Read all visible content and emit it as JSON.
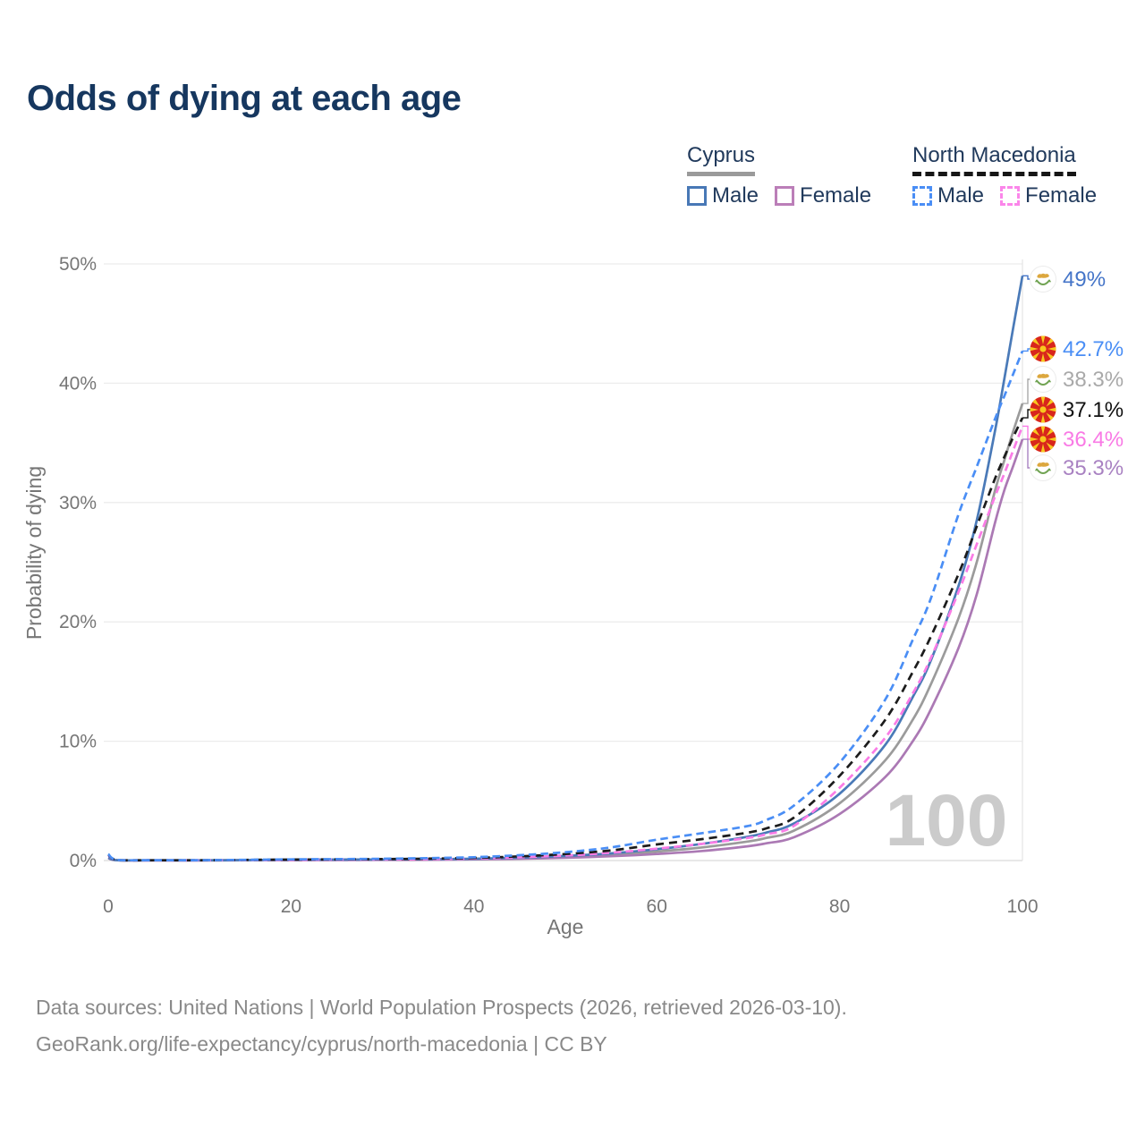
{
  "title": "Odds of dying at each age",
  "watermark": "100",
  "legend": {
    "groups": [
      {
        "name": "Cyprus",
        "line_style": "solid",
        "underline_color": "#9a9a9a",
        "items": [
          {
            "label": "Male",
            "color": "#4878b6"
          },
          {
            "label": "Female",
            "color": "#bb7eb8"
          }
        ]
      },
      {
        "name": "North Macedonia",
        "line_style": "dashed",
        "underline_color": "#161616",
        "items": [
          {
            "label": "Male",
            "color": "#4a8ef5"
          },
          {
            "label": "Female",
            "color": "#fb86ea"
          }
        ]
      }
    ]
  },
  "axes": {
    "x": {
      "title": "Age",
      "ticks": [
        0,
        20,
        40,
        60,
        80,
        100
      ],
      "min": 0,
      "max": 100
    },
    "y": {
      "title": "Probability of dying",
      "ticks": [
        "0%",
        "10%",
        "20%",
        "30%",
        "40%",
        "50%"
      ],
      "tick_values": [
        0,
        10,
        20,
        30,
        40,
        50
      ],
      "min": 0,
      "max": 50
    }
  },
  "footer": {
    "line1": "Data sources: United Nations | World Population Prospects (2026, retrieved 2026-03-10).",
    "line2": "GeoRank.org/life-expectancy/cyprus/north-macedonia | CC BY"
  },
  "chart_data": {
    "type": "line",
    "title": "Odds of dying at each age",
    "xlabel": "Age",
    "ylabel": "Probability of dying",
    "xlim": [
      0,
      100
    ],
    "ylim": [
      0,
      50
    ],
    "grid": "horizontal",
    "legend_position": "top-right",
    "x_ages": [
      0,
      1,
      5,
      10,
      15,
      20,
      25,
      30,
      35,
      40,
      45,
      50,
      55,
      60,
      65,
      70,
      72,
      75,
      80,
      85,
      88,
      90,
      93,
      95,
      97,
      98,
      99,
      100
    ],
    "series": [
      {
        "name": "Cyprus Male",
        "country": "Cyprus",
        "sex": "male",
        "style": "solid",
        "color": "#4a7ab8",
        "label_color": "#4575c8",
        "flag_icon": "cyprus-flag-icon",
        "end_label": "49%",
        "end_value": 49.0,
        "values": [
          0.25,
          0.03,
          0.02,
          0.02,
          0.04,
          0.07,
          0.08,
          0.09,
          0.11,
          0.15,
          0.24,
          0.38,
          0.6,
          0.95,
          1.4,
          2.0,
          2.35,
          3.1,
          5.6,
          9.7,
          13.7,
          16.8,
          23.0,
          28.5,
          36.0,
          40.3,
          44.7,
          49.0
        ]
      },
      {
        "name": "Cyprus Both sexes",
        "country": "Cyprus",
        "sex": "both",
        "style": "solid",
        "color": "#9b9b9b",
        "label_color": "#a9a9a9",
        "flag_icon": "cyprus-flag-icon",
        "end_label": "38.3%",
        "end_value": 38.3,
        "values": [
          0.22,
          0.025,
          0.015,
          0.015,
          0.03,
          0.05,
          0.06,
          0.07,
          0.09,
          0.12,
          0.19,
          0.3,
          0.48,
          0.75,
          1.1,
          1.6,
          1.9,
          2.5,
          4.8,
          8.4,
          11.8,
          14.8,
          20.3,
          25.0,
          31.0,
          33.5,
          36.0,
          38.3
        ]
      },
      {
        "name": "Cyprus Female",
        "country": "Cyprus",
        "sex": "female",
        "style": "solid",
        "color": "#ab79b4",
        "label_color": "#a982c2",
        "flag_icon": "cyprus-flag-icon",
        "end_label": "35.3%",
        "end_value": 35.3,
        "values": [
          0.2,
          0.02,
          0.01,
          0.01,
          0.02,
          0.03,
          0.04,
          0.05,
          0.07,
          0.1,
          0.15,
          0.23,
          0.36,
          0.55,
          0.8,
          1.2,
          1.45,
          1.95,
          3.9,
          7.0,
          10.0,
          12.7,
          17.8,
          22.3,
          28.3,
          31.0,
          33.1,
          35.3
        ]
      },
      {
        "name": "North Macedonia Male",
        "country": "North Macedonia",
        "sex": "male",
        "style": "dashed",
        "color": "#4a8ef5",
        "label_color": "#4a8ef5",
        "flag_icon": "north-macedonia-flag-icon",
        "end_label": "42.7%",
        "end_value": 42.7,
        "values": [
          0.55,
          0.05,
          0.03,
          0.03,
          0.06,
          0.1,
          0.12,
          0.15,
          0.2,
          0.28,
          0.45,
          0.7,
          1.1,
          1.75,
          2.3,
          2.9,
          3.4,
          4.6,
          8.2,
          13.5,
          18.5,
          22.0,
          29.0,
          33.0,
          37.0,
          38.9,
          40.8,
          42.7
        ]
      },
      {
        "name": "North Macedonia Both sexes",
        "country": "North Macedonia",
        "sex": "both",
        "style": "dashed",
        "color": "#1c1c1c",
        "label_color": "#111111",
        "flag_icon": "north-macedonia-flag-icon",
        "end_label": "37.1%",
        "end_value": 37.1,
        "values": [
          0.5,
          0.04,
          0.025,
          0.025,
          0.05,
          0.08,
          0.1,
          0.12,
          0.16,
          0.22,
          0.35,
          0.55,
          0.85,
          1.35,
          1.8,
          2.35,
          2.7,
          3.6,
          7.1,
          11.8,
          15.8,
          18.8,
          24.0,
          28.0,
          32.0,
          33.8,
          35.5,
          37.1
        ]
      },
      {
        "name": "North Macedonia Female",
        "country": "North Macedonia",
        "sex": "female",
        "style": "dashed",
        "color": "#fa7ce6",
        "label_color": "#f97ae5",
        "flag_icon": "north-macedonia-flag-icon",
        "end_label": "36.4%",
        "end_value": 36.4,
        "values": [
          0.45,
          0.04,
          0.02,
          0.02,
          0.04,
          0.06,
          0.08,
          0.09,
          0.12,
          0.17,
          0.27,
          0.42,
          0.65,
          1.0,
          1.4,
          1.9,
          2.2,
          2.9,
          6.1,
          10.3,
          14.0,
          17.0,
          22.5,
          26.5,
          30.5,
          32.4,
          34.4,
          36.4
        ]
      }
    ]
  }
}
